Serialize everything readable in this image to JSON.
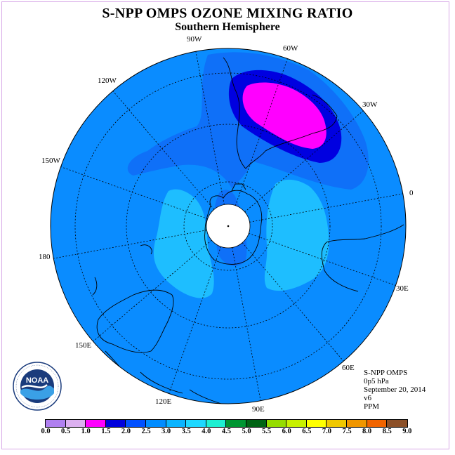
{
  "title": "S-NPP OMPS OZONE MIXING RATIO",
  "subtitle": "Southern Hemisphere",
  "info": {
    "instrument": "S-NPP OMPS",
    "level": "0p5 hPa",
    "date": "September 20, 2014",
    "version": "v6",
    "units": "PPM"
  },
  "logo": {
    "text": "NOAA",
    "ring_text": "NATIONAL OCEANIC AND ATMOSPHERIC ADMINISTRATION U.S. DEPARTMENT OF COMMERCE"
  },
  "longitude_labels": [
    {
      "key": "90w",
      "text": "90W"
    },
    {
      "key": "60w",
      "text": "60W"
    },
    {
      "key": "30w",
      "text": "30W"
    },
    {
      "key": "0",
      "text": "0"
    },
    {
      "key": "30e",
      "text": "30E"
    },
    {
      "key": "60e",
      "text": "60E"
    },
    {
      "key": "90e",
      "text": "90E"
    },
    {
      "key": "120e",
      "text": "120E"
    },
    {
      "key": "150e",
      "text": "150E"
    },
    {
      "key": "180",
      "text": "180"
    },
    {
      "key": "150w",
      "text": "150W"
    },
    {
      "key": "120w",
      "text": "120W"
    }
  ],
  "colorbar": {
    "ticks": [
      "0.0",
      "0.5",
      "1.0",
      "1.5",
      "2.0",
      "2.5",
      "3.0",
      "3.5",
      "4.0",
      "4.5",
      "5.0",
      "5.5",
      "6.0",
      "6.5",
      "7.0",
      "7.5",
      "8.0",
      "8.5",
      "9.0"
    ],
    "colors": [
      "#b080f0",
      "#dcb0f0",
      "#ff00ff",
      "#0000dd",
      "#0050ff",
      "#008cff",
      "#0ab4ff",
      "#1ed8ff",
      "#1ef0d2",
      "#009632",
      "#006414",
      "#96dc00",
      "#c8f000",
      "#ffff00",
      "#f0c800",
      "#f09600",
      "#f06400",
      "#f00000",
      "#8c5028"
    ]
  },
  "map_levels": {
    "background_ppm": "2.5-3.0",
    "enhanced_ppm": "2.0-2.5",
    "maximum_ppm": "1.5-2.0",
    "peak_ppm": "1.0-1.5",
    "minimum_ppm": "3.0-3.5"
  }
}
